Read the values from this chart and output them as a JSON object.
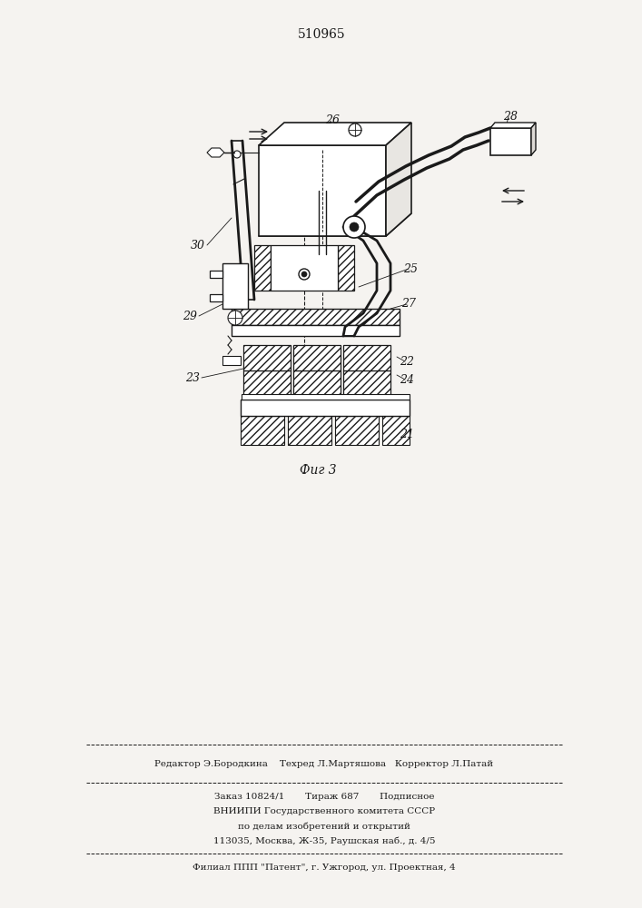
{
  "patent_number": "510965",
  "figure_label": "Фиг 3",
  "bg_color": "#f5f3f0",
  "line_color": "#1a1a1a",
  "footer_lines": [
    "Редактор Э.Бородкина    Техред Л.Мартяшова   Корректор Л.Патай",
    "Заказ 10824/1       Тираж 687       Подписное",
    "ВНИИПИ Государственного комитета СССР",
    "по делам изобретений и открытий",
    "113035, Москва, Ж-35, Раушская наб., д. 4/5",
    "Филиал ППП \"Патент\", г. Ужгород, ул. Проектная, 4"
  ]
}
